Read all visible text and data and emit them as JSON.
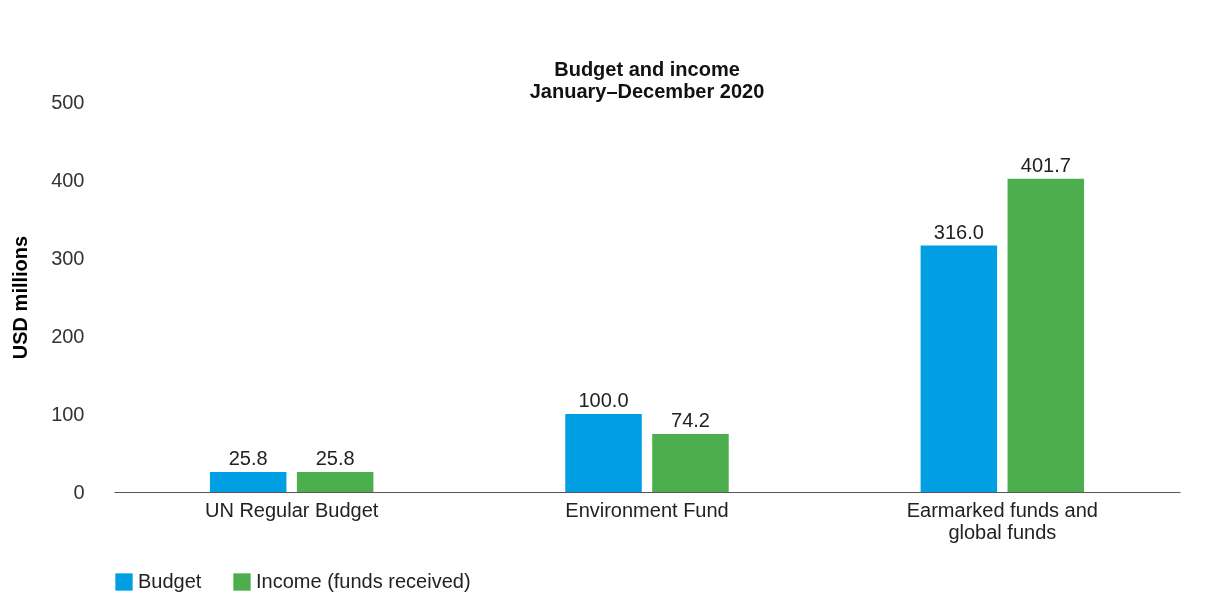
{
  "chart_data": {
    "type": "bar",
    "title": [
      "Budget and income",
      "January–December 2020"
    ],
    "ylabel": "USD millions",
    "categories": [
      "UN Regular Budget",
      "Environment Fund",
      "Earmarked funds and global funds"
    ],
    "series": [
      {
        "name": "Budget",
        "color": "#009fe3",
        "values": [
          25.8,
          100.0,
          316.0
        ],
        "value_labels": [
          "25.8",
          "100.0",
          "316.0"
        ]
      },
      {
        "name": "Income (funds received)",
        "color": "#4cae4c",
        "values": [
          25.8,
          74.2,
          401.7
        ],
        "value_labels": [
          "25.8",
          "74.2",
          "401.7"
        ]
      }
    ],
    "ylim": [
      0,
      500
    ],
    "yticks": [
      0,
      100,
      200,
      300,
      400,
      500
    ],
    "grid": false,
    "legend": "bottom left"
  }
}
